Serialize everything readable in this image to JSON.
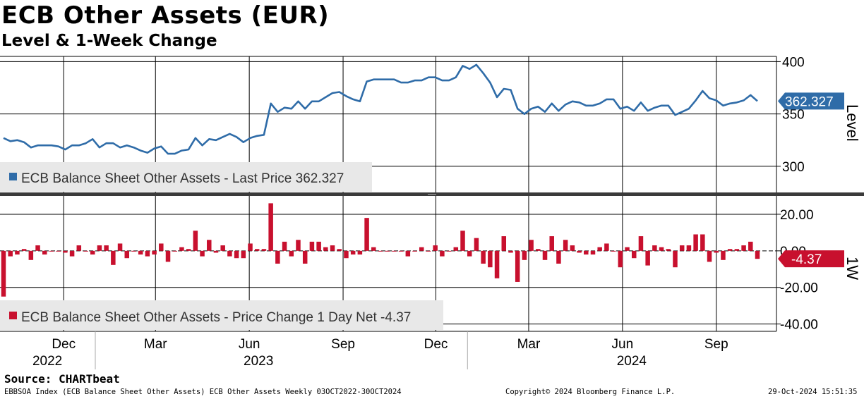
{
  "title": "ECB Other Assets (EUR)",
  "subtitle": "Level & 1-Week Change",
  "source": "Source: CHARTbeat",
  "footer": {
    "left": "EBBSOA Index (ECB Balance Sheet Other Assets) ECB Other Assets  Weekly 03OCT2022-30OCT2024",
    "center": "Copyright© 2024 Bloomberg Finance L.P.",
    "right": "29-Oct-2024 15:51:35"
  },
  "colors": {
    "level": "#2f6ca8",
    "change": "#c8102e",
    "grid": "#000000",
    "legend_bg": "#e8e8e8"
  },
  "chart_data": [
    {
      "type": "line",
      "panel": "top",
      "ylabel": "Level",
      "ylim": [
        275,
        405
      ],
      "yticks": [
        300,
        350,
        400
      ],
      "legend": "ECB Balance Sheet Other Assets - Last Price 362.327",
      "last_value_label": "362.327",
      "x_start": "2022-10-03",
      "x_end": "2024-10-30",
      "x_ticks": [
        {
          "label": "Dec",
          "date": "2022-12-01"
        },
        {
          "label": "Mar",
          "date": "2023-03-01"
        },
        {
          "label": "Jun",
          "date": "2023-06-01"
        },
        {
          "label": "Sep",
          "date": "2023-09-01"
        },
        {
          "label": "Dec",
          "date": "2023-12-01"
        },
        {
          "label": "Mar",
          "date": "2024-03-01"
        },
        {
          "label": "Jun",
          "date": "2024-06-01"
        },
        {
          "label": "Sep",
          "date": "2024-09-01"
        }
      ],
      "year_labels": [
        {
          "label": "2022",
          "date": "2022-11-15"
        },
        {
          "label": "2023",
          "date": "2023-06-10"
        },
        {
          "label": "2024",
          "date": "2024-06-10"
        }
      ],
      "values": [
        327,
        324,
        325,
        323,
        318,
        320,
        320,
        320,
        319,
        316,
        320,
        320,
        322,
        326,
        318,
        322,
        322,
        318,
        320,
        318,
        315,
        313,
        317,
        319,
        312,
        312,
        315,
        316,
        327,
        320,
        326,
        325,
        328,
        331,
        328,
        323,
        327,
        329,
        330,
        360,
        352,
        356,
        355,
        362,
        355,
        362,
        362,
        366,
        370,
        371,
        367,
        364,
        362,
        381,
        383,
        383,
        383,
        383,
        380,
        380,
        382,
        382,
        385,
        385,
        382,
        382,
        385,
        396,
        393,
        397,
        389,
        380,
        366,
        374,
        373,
        355,
        350,
        355,
        357,
        352,
        360,
        353,
        359,
        362,
        361,
        358,
        358,
        360,
        364,
        364,
        355,
        357,
        353,
        361,
        353,
        356,
        358,
        358,
        349,
        352,
        355,
        363,
        372,
        365,
        363,
        358,
        360,
        361,
        363,
        368,
        362.327
      ]
    },
    {
      "type": "bar",
      "panel": "bottom",
      "ylabel": "1W",
      "ylim": [
        -44,
        30
      ],
      "yticks": [
        20,
        0,
        -20,
        -40
      ],
      "ytick_labels": [
        "20.00",
        "0.00",
        "-20.00",
        "-40.00"
      ],
      "legend": "ECB Balance Sheet Other Assets - Price Change 1 Day Net -4.37",
      "last_value_label": "-4.37",
      "values": [
        -25,
        -3,
        -2,
        1,
        -5,
        3,
        -2,
        0,
        0,
        -1,
        -3,
        3,
        0,
        -2,
        3,
        3,
        -7.7,
        4,
        -4,
        0,
        -2,
        -3,
        -2,
        4,
        -6,
        0,
        2,
        1,
        11,
        -3,
        6,
        -1,
        3,
        -3,
        -4,
        -4,
        4,
        1,
        1,
        26,
        -7,
        5,
        -3,
        6,
        -7,
        5,
        5,
        2,
        3,
        1,
        -4,
        -2,
        -2,
        18,
        2,
        0,
        0,
        0,
        0,
        -3,
        0,
        2,
        0,
        3,
        -3,
        0,
        2,
        11,
        -3,
        7,
        -7,
        -9,
        -15,
        8,
        -1,
        -17,
        -5,
        6,
        1,
        -5,
        8,
        -7,
        6,
        3,
        -1,
        -2,
        -2,
        2,
        4,
        0,
        -9,
        2,
        -4,
        8,
        -8,
        3,
        2,
        1,
        -9,
        3,
        3,
        9,
        9,
        -6,
        -1,
        -5,
        1,
        1,
        3,
        5,
        -4.37
      ]
    }
  ]
}
